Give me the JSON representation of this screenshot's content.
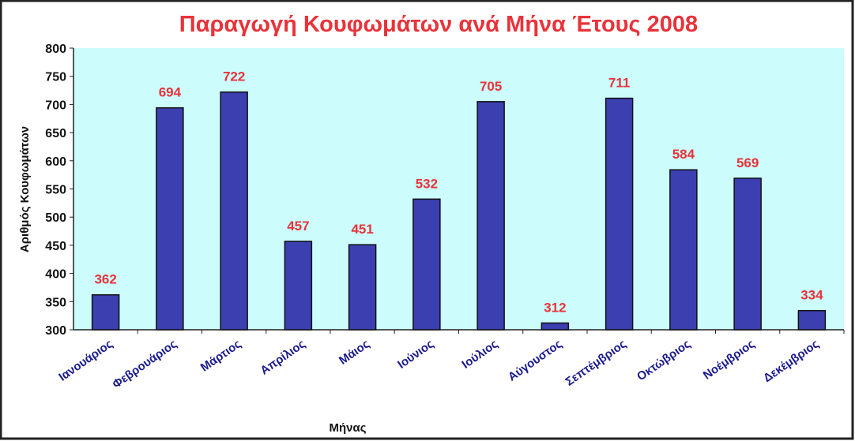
{
  "chart_data": {
    "type": "bar",
    "title": "Παραγωγή Κουφωμάτων ανά Μήνα Έτους 2008",
    "x_label": "Μήνας",
    "y_label": "Αριθμός Κουφωμάτων",
    "categories": [
      "Ιανουάριος",
      "Φεβρουάριος",
      "Μάρτιος",
      "Απρίλιος",
      "Μάιος",
      "Ιούνιος",
      "Ιούλιος",
      "Αύγουστος",
      "Σεπτέμβριος",
      "Οκτώβριος",
      "Νοέμβριος",
      "Δεκέμβριος"
    ],
    "values": [
      362,
      694,
      722,
      457,
      451,
      532,
      705,
      312,
      711,
      584,
      569,
      334
    ],
    "color": "#3b3fb0",
    "label_color": "#e8333a",
    "plot_background": "#ccfcfc",
    "ylim": [
      300,
      800
    ],
    "yticks": [
      300,
      350,
      400,
      450,
      500,
      550,
      600,
      650,
      700,
      750,
      800
    ],
    "grid": false
  }
}
